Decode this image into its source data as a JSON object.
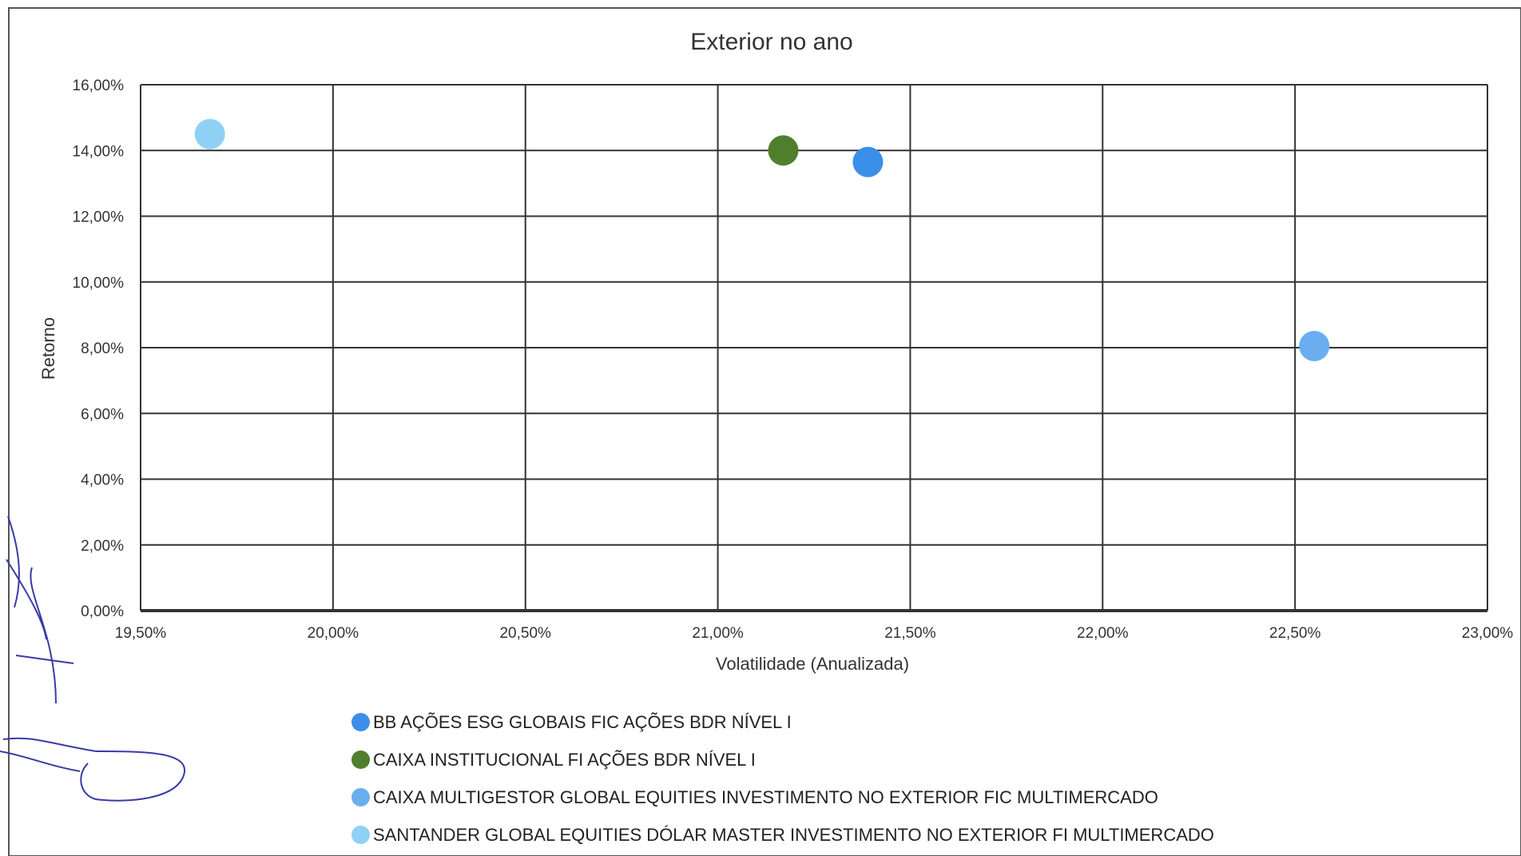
{
  "chart_data": {
    "type": "scatter",
    "title": "Exterior no ano",
    "xlabel": "Volatilidade (Anualizada)",
    "ylabel": "Retorno",
    "xlim": [
      19.5,
      23.0
    ],
    "ylim": [
      0,
      16
    ],
    "x_ticks": [
      "19,50%",
      "20,00%",
      "20,50%",
      "21,00%",
      "21,50%",
      "22,00%",
      "22,50%",
      "23,00%"
    ],
    "y_ticks": [
      "0,00%",
      "2,00%",
      "4,00%",
      "6,00%",
      "8,00%",
      "10,00%",
      "12,00%",
      "14,00%",
      "16,00%"
    ],
    "grid": true,
    "legend_position": "bottom",
    "series": [
      {
        "name": "BB AÇÕES ESG GLOBAIS FIC AÇÕES BDR NÍVEL I",
        "color": "#3b8fe8",
        "x": 21.39,
        "y": 13.65
      },
      {
        "name": "CAIXA INSTITUCIONAL FI AÇÕES BDR NÍVEL I",
        "color": "#4f7f2c",
        "x": 21.17,
        "y": 14.0
      },
      {
        "name": "CAIXA MULTIGESTOR GLOBAL EQUITIES INVESTIMENTO NO EXTERIOR FIC MULTIMERCADO",
        "color": "#6aaef0",
        "x": 22.55,
        "y": 8.05
      },
      {
        "name": "SANTANDER GLOBAL EQUITIES DÓLAR MASTER INVESTIMENTO NO EXTERIOR FI MULTIMERCADO",
        "color": "#8fd1f5",
        "x": 19.68,
        "y": 14.5
      }
    ]
  }
}
